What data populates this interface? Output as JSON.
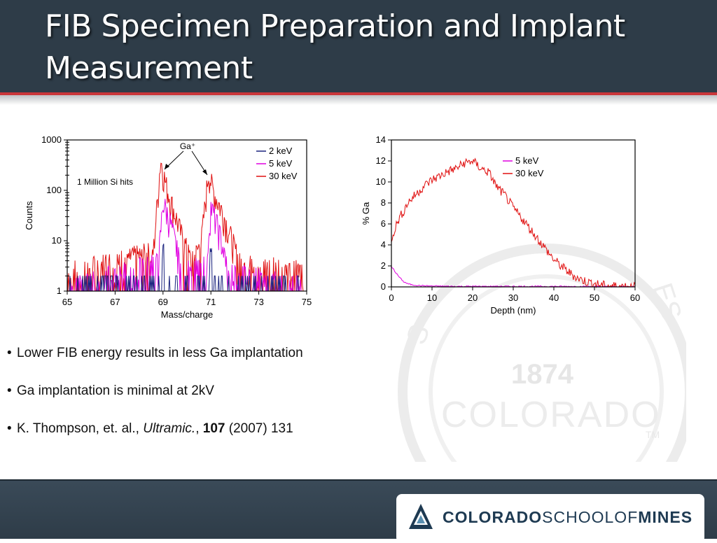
{
  "slide": {
    "title": "FIB Specimen Preparation and Implant Measurement"
  },
  "bullets": [
    {
      "text": "Lower FIB energy results in less Ga implantation"
    },
    {
      "text": "Ga implantation is minimal at 2kV"
    },
    {
      "prefix": "K. Thompson, et. al., ",
      "journal": "Ultramic.",
      "sep": ", ",
      "volume": "107",
      "suffix": " (2007) 131"
    }
  ],
  "watermark": {
    "year": "1874",
    "word": "COLORADO",
    "letters_left": "S",
    "letters_right": "ES",
    "tm": "TM"
  },
  "logo": {
    "part1": "COLORADO",
    "part2": "SCHOOLOF",
    "part3": "MINES"
  },
  "colors": {
    "header": "#2e3c48",
    "accent": "#c9363a",
    "series_2kev": "#1a237e",
    "series_5kev": "#e000e0",
    "series_30kev": "#e01010"
  },
  "chart_data": [
    {
      "type": "line",
      "xlabel": "Mass/charge",
      "ylabel": "Counts",
      "xlim": [
        65,
        75
      ],
      "ylim": [
        1,
        1000
      ],
      "yscale": "log",
      "xticks": [
        "65",
        "67",
        "69",
        "71",
        "73",
        "75"
      ],
      "yticks": [
        "1",
        "10",
        "100",
        "1000"
      ],
      "legend_position": "top-right",
      "annotations": [
        "1 Million Si hits",
        "Ga⁺"
      ],
      "series": [
        {
          "name": "2 keV",
          "x": [
            65,
            68.9,
            69.0,
            69.1,
            70.9,
            71.0,
            71.1,
            75
          ],
          "y": [
            1,
            1,
            8,
            1,
            1,
            6,
            1,
            1
          ]
        },
        {
          "name": "5 keV",
          "x": [
            65,
            68.8,
            69.0,
            69.3,
            69.6,
            69.8,
            70.8,
            71.0,
            71.3,
            71.6,
            71.8,
            75
          ],
          "y": [
            1,
            3,
            50,
            20,
            5,
            2,
            3,
            40,
            15,
            4,
            2,
            1
          ]
        },
        {
          "name": "30 keV",
          "x": [
            65,
            68.6,
            68.9,
            69.1,
            69.4,
            69.8,
            70.2,
            70.6,
            70.9,
            71.1,
            71.5,
            71.9,
            72.2,
            75
          ],
          "y": [
            2,
            5,
            350,
            120,
            40,
            10,
            3,
            8,
            200,
            80,
            30,
            8,
            3,
            2
          ]
        }
      ]
    },
    {
      "type": "line",
      "xlabel": "Depth (nm)",
      "ylabel": "% Ga",
      "xlim": [
        0,
        60
      ],
      "ylim": [
        0,
        14
      ],
      "xticks": [
        "0",
        "10",
        "20",
        "30",
        "40",
        "50",
        "60"
      ],
      "yticks": [
        "0",
        "2",
        "4",
        "6",
        "8",
        "10",
        "12",
        "14"
      ],
      "legend_position": "top-right",
      "series": [
        {
          "name": "5 keV",
          "x": [
            0,
            0.5,
            1,
            2,
            3,
            4,
            5,
            7,
            10,
            15,
            20,
            30,
            45,
            60
          ],
          "y": [
            1.9,
            1.7,
            1.4,
            0.9,
            0.5,
            0.3,
            0.2,
            0.12,
            0.08,
            0.05,
            0.05,
            0.05,
            0.04,
            0.02
          ]
        },
        {
          "name": "30 keV",
          "x": [
            0,
            1,
            2,
            3,
            4,
            6,
            8,
            10,
            12,
            14,
            16,
            18,
            20,
            22,
            24,
            26,
            28,
            30,
            32,
            34,
            36,
            38,
            40,
            42,
            44,
            46,
            48,
            50,
            52,
            55,
            60
          ],
          "y": [
            4.6,
            5.7,
            6.6,
            7.2,
            8.0,
            8.8,
            9.6,
            10.2,
            10.6,
            11.0,
            11.3,
            11.8,
            12.0,
            11.3,
            10.9,
            9.5,
            8.7,
            7.5,
            6.6,
            5.6,
            4.6,
            3.6,
            2.6,
            1.9,
            1.3,
            0.8,
            0.5,
            0.3,
            0.15,
            0.08,
            0.05
          ]
        }
      ]
    }
  ]
}
